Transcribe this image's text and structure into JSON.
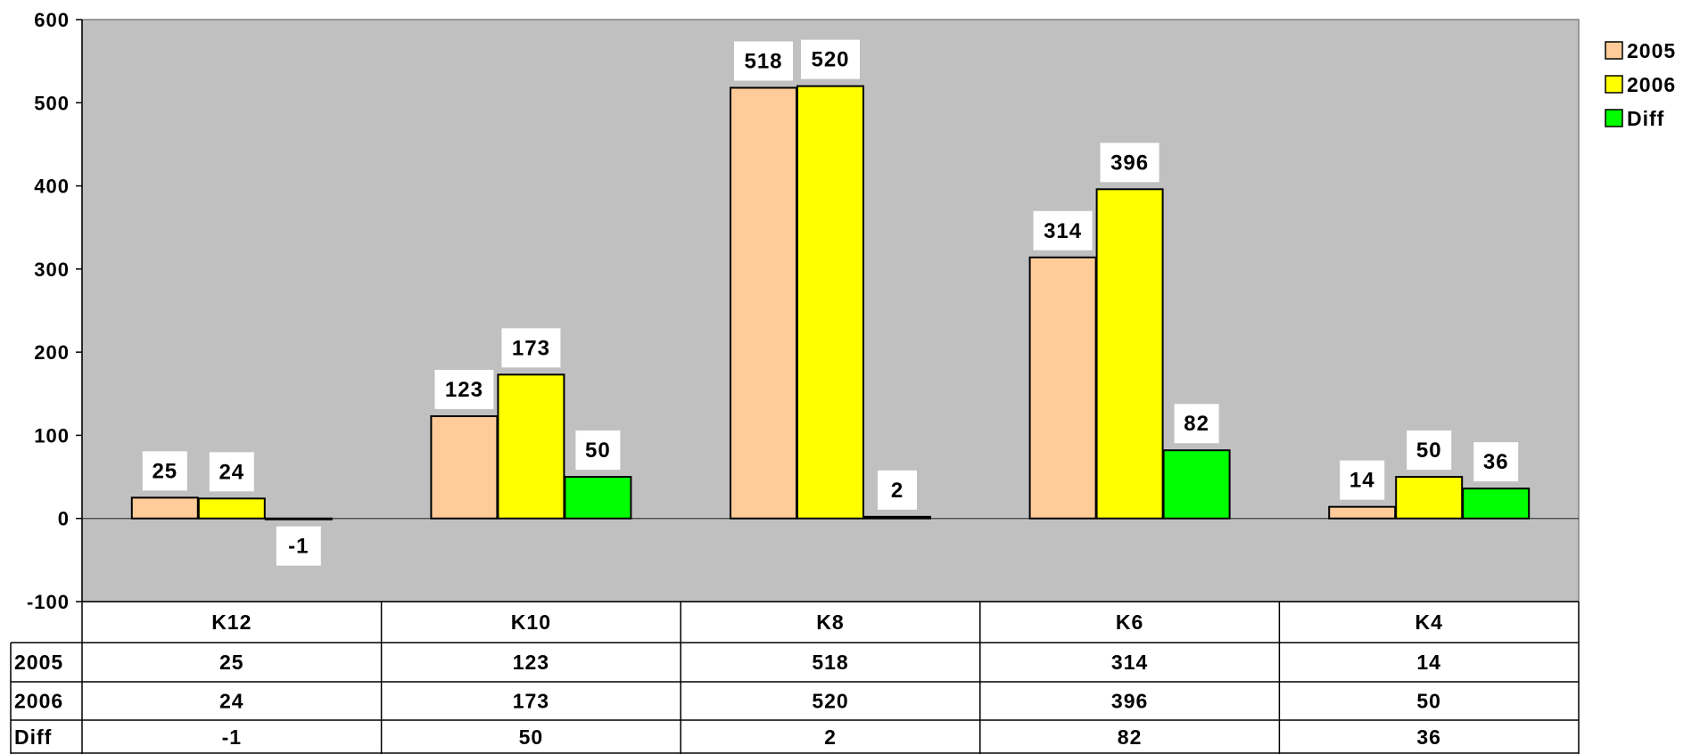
{
  "chart_data": {
    "type": "bar",
    "categories": [
      "K12",
      "K10",
      "K8",
      "K6",
      "K4"
    ],
    "series": [
      {
        "name": "2005",
        "values": [
          25,
          123,
          518,
          314,
          14
        ],
        "color": "#FFCC99"
      },
      {
        "name": "2006",
        "values": [
          24,
          173,
          520,
          396,
          50
        ],
        "color": "#FFFF00"
      },
      {
        "name": "Diff",
        "values": [
          -1,
          50,
          2,
          82,
          36
        ],
        "color": "#00FF00"
      }
    ],
    "ylim": [
      -100,
      600
    ],
    "yticks": [
      "600",
      "500",
      "400",
      "300",
      "200",
      "100",
      "0",
      "-100"
    ],
    "ytick_values": [
      600,
      500,
      400,
      300,
      200,
      100,
      0,
      -100
    ],
    "plot_background": "#C0C0C0",
    "grid": false,
    "legend_position": "right-top",
    "data_table": true,
    "title": "",
    "xlabel": "",
    "ylabel": ""
  }
}
